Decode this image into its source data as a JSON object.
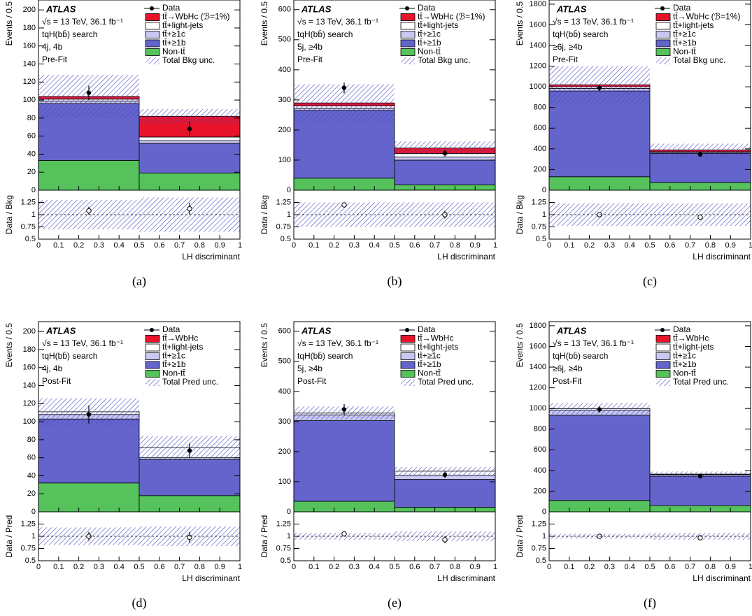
{
  "chart_data": [
    {
      "type": "histogram",
      "caption": "(a)",
      "experiment": "ATLAS",
      "energy_lumi": "√s = 13 TeV, 36.1 fb⁻¹",
      "search": "tqH(bb̄) search",
      "region": "4j, 4b",
      "stage": "Pre-Fit",
      "ylabel": "Events / 0.5",
      "xlabel": "LH discriminant",
      "ratio_label": "Data / Bkg",
      "unc_label": "Total Bkg unc.",
      "bins": [
        0,
        0.5,
        1
      ],
      "xlim": [
        0,
        1
      ],
      "xticks": [
        0,
        0.1,
        0.2,
        0.3,
        0.4,
        0.5,
        0.6,
        0.7,
        0.8,
        0.9,
        1
      ],
      "ylim": [
        0,
        211
      ],
      "yticks": [
        0,
        20,
        40,
        60,
        80,
        100,
        120,
        140,
        160,
        180,
        200
      ],
      "series": [
        {
          "name": "Non-tt̄",
          "color": "#55c25c",
          "values": [
            33,
            19
          ]
        },
        {
          "name": "tt̄+≥1b",
          "color": "#6464cc",
          "values": [
            63,
            33
          ]
        },
        {
          "name": "tt̄+≥1c",
          "color": "#c8c8f2",
          "values": [
            3,
            3
          ]
        },
        {
          "name": "tt̄+light-jets",
          "color": "#ffffff",
          "values": [
            2,
            4
          ]
        },
        {
          "name": "tt̄→WbHc (ℬ=1%)",
          "color": "#e8132b",
          "values": [
            3,
            23
          ]
        }
      ],
      "unc": [
        24,
        8
      ],
      "data": {
        "name": "Data",
        "values": [
          108,
          68
        ],
        "errors": [
          8,
          8
        ]
      },
      "ratio": {
        "values": [
          1.08,
          1.12
        ],
        "errors": [
          0.08,
          0.12
        ],
        "unc": [
          0.3,
          0.35
        ]
      },
      "ratio_ylim": [
        0.5,
        1.5
      ],
      "ratio_yticks": [
        0.5,
        0.75,
        1,
        1.25
      ],
      "ratio_ref": 1
    },
    {
      "type": "histogram",
      "caption": "(b)",
      "experiment": "ATLAS",
      "energy_lumi": "√s = 13 TeV, 36.1 fb⁻¹",
      "search": "tqH(bb̄) search",
      "region": "5j, ≥4b",
      "stage": "Pre-Fit",
      "ylabel": "Events / 0.5",
      "xlabel": "LH discriminant",
      "ratio_label": "Data / Bkg",
      "unc_label": "Total Bkg unc.",
      "bins": [
        0,
        0.5,
        1
      ],
      "xlim": [
        0,
        1
      ],
      "xticks": [
        0,
        0.1,
        0.2,
        0.3,
        0.4,
        0.5,
        0.6,
        0.7,
        0.8,
        0.9,
        1
      ],
      "ylim": [
        0,
        632
      ],
      "yticks": [
        0,
        100,
        200,
        300,
        400,
        500,
        600
      ],
      "series": [
        {
          "name": "Non-tt̄",
          "color": "#55c25c",
          "values": [
            40,
            18
          ]
        },
        {
          "name": "tt̄+≥1b",
          "color": "#6464cc",
          "values": [
            225,
            82
          ]
        },
        {
          "name": "tt̄+≥1c",
          "color": "#c8c8f2",
          "values": [
            7,
            10
          ]
        },
        {
          "name": "tt̄+light-jets",
          "color": "#ffffff",
          "values": [
            8,
            12
          ]
        },
        {
          "name": "tt̄→WbHc (ℬ=1%)",
          "color": "#e8132b",
          "values": [
            10,
            18
          ]
        }
      ],
      "unc": [
        62,
        22
      ],
      "data": {
        "name": "Data",
        "values": [
          340,
          123
        ],
        "errors": [
          18,
          11
        ]
      },
      "ratio": {
        "values": [
          1.2,
          1.0
        ],
        "errors": [
          0.05,
          0.08
        ],
        "unc": [
          0.25,
          0.25
        ]
      },
      "ratio_ylim": [
        0.5,
        1.5
      ],
      "ratio_yticks": [
        0.5,
        0.75,
        1,
        1.25
      ],
      "ratio_ref": 1
    },
    {
      "type": "histogram",
      "caption": "(c)",
      "experiment": "ATLAS",
      "energy_lumi": "√s = 13 TeV, 36.1 fb⁻¹",
      "search": "tqH(bb̄) search",
      "region": "≥6j, ≥4b",
      "stage": "Pre-Fit",
      "ylabel": "Events / 0.5",
      "xlabel": "LH discriminant",
      "ratio_label": "Data / Bkg",
      "unc_label": "Total Bkg unc.",
      "bins": [
        0,
        0.5,
        1
      ],
      "xlim": [
        0,
        1
      ],
      "xticks": [
        0,
        0.1,
        0.2,
        0.3,
        0.4,
        0.5,
        0.6,
        0.7,
        0.8,
        0.9,
        1
      ],
      "ylim": [
        0,
        1840
      ],
      "yticks": [
        0,
        200,
        400,
        600,
        800,
        1000,
        1200,
        1400,
        1600,
        1800
      ],
      "series": [
        {
          "name": "Non-tt̄",
          "color": "#55c25c",
          "values": [
            130,
            75
          ]
        },
        {
          "name": "tt̄+≥1b",
          "color": "#6464cc",
          "values": [
            830,
            280
          ]
        },
        {
          "name": "tt̄+≥1c",
          "color": "#c8c8f2",
          "values": [
            25,
            10
          ]
        },
        {
          "name": "tt̄+light-jets",
          "color": "#ffffff",
          "values": [
            15,
            7
          ]
        },
        {
          "name": "tt̄→WbHc (ℬ=1%)",
          "color": "#e8132b",
          "values": [
            20,
            18
          ]
        }
      ],
      "unc": [
        180,
        60
      ],
      "data": {
        "name": "Data",
        "values": [
          990,
          345
        ],
        "errors": [
          31,
          19
        ]
      },
      "ratio": {
        "values": [
          1.0,
          0.95
        ],
        "errors": [
          0.03,
          0.05
        ],
        "unc": [
          0.23,
          0.23
        ]
      },
      "ratio_ylim": [
        0.5,
        1.5
      ],
      "ratio_yticks": [
        0.5,
        0.75,
        1,
        1.25
      ],
      "ratio_ref": 1
    },
    {
      "type": "histogram",
      "caption": "(d)",
      "experiment": "ATLAS",
      "energy_lumi": "√s = 13 TeV, 36.1 fb⁻¹",
      "search": "tqH(bb̄) search",
      "region": "4j, 4b",
      "stage": "Post-Fit",
      "ylabel": "Events / 0.5",
      "xlabel": "LH discriminant",
      "ratio_label": "Data / Pred",
      "unc_label": "Total Pred unc.",
      "bins": [
        0,
        0.5,
        1
      ],
      "xlim": [
        0,
        1
      ],
      "xticks": [
        0,
        0.1,
        0.2,
        0.3,
        0.4,
        0.5,
        0.6,
        0.7,
        0.8,
        0.9,
        1
      ],
      "ylim": [
        0,
        211
      ],
      "yticks": [
        0,
        20,
        40,
        60,
        80,
        100,
        120,
        140,
        160,
        180,
        200
      ],
      "series": [
        {
          "name": "Non-tt̄",
          "color": "#55c25c",
          "values": [
            32,
            18
          ]
        },
        {
          "name": "tt̄+≥1b",
          "color": "#6464cc",
          "values": [
            71,
            40
          ]
        },
        {
          "name": "tt̄+≥1c",
          "color": "#c8c8f2",
          "values": [
            5,
            2
          ]
        },
        {
          "name": "tt̄+light-jets",
          "color": "#ffffff",
          "values": [
            3,
            11
          ]
        },
        {
          "name": "tt̄→WbHc",
          "color": "#e8132b",
          "values": [
            0,
            0
          ]
        }
      ],
      "unc": [
        15,
        13
      ],
      "data": {
        "name": "Data",
        "values": [
          108,
          68
        ],
        "errors": [
          10,
          8
        ]
      },
      "ratio": {
        "values": [
          1.0,
          0.98
        ],
        "errors": [
          0.09,
          0.11
        ],
        "unc": [
          0.18,
          0.2
        ]
      },
      "ratio_ylim": [
        0.5,
        1.5
      ],
      "ratio_yticks": [
        0.5,
        0.75,
        1,
        1.25
      ],
      "ratio_ref": 1
    },
    {
      "type": "histogram",
      "caption": "(e)",
      "experiment": "ATLAS",
      "energy_lumi": "√s = 13 TeV, 36.1 fb⁻¹",
      "search": "tqH(bb̄) search",
      "region": "5j, ≥4b",
      "stage": "Post-Fit",
      "ylabel": "Events / 0.5",
      "xlabel": "LH discriminant",
      "ratio_label": "Data / Pred",
      "unc_label": "Total Pred unc.",
      "bins": [
        0,
        0.5,
        1
      ],
      "xlim": [
        0,
        1
      ],
      "xticks": [
        0,
        0.1,
        0.2,
        0.3,
        0.4,
        0.5,
        0.6,
        0.7,
        0.8,
        0.9,
        1
      ],
      "ylim": [
        0,
        632
      ],
      "yticks": [
        0,
        100,
        200,
        300,
        400,
        500,
        600
      ],
      "series": [
        {
          "name": "Non-tt̄",
          "color": "#55c25c",
          "values": [
            35,
            15
          ]
        },
        {
          "name": "tt̄+≥1b",
          "color": "#6464cc",
          "values": [
            268,
            93
          ]
        },
        {
          "name": "tt̄+≥1c",
          "color": "#c8c8f2",
          "values": [
            19,
            14
          ]
        },
        {
          "name": "tt̄+light-jets",
          "color": "#ffffff",
          "values": [
            6,
            13
          ]
        },
        {
          "name": "tt̄→WbHc",
          "color": "#e8132b",
          "values": [
            0,
            0
          ]
        }
      ],
      "unc": [
        22,
        14
      ],
      "data": {
        "name": "Data",
        "values": [
          340,
          123
        ],
        "errors": [
          18,
          11
        ]
      },
      "ratio": {
        "values": [
          1.05,
          0.93
        ],
        "errors": [
          0.04,
          0.07
        ],
        "unc": [
          0.07,
          0.1
        ]
      },
      "ratio_ylim": [
        0.5,
        1.5
      ],
      "ratio_yticks": [
        0.5,
        0.75,
        1,
        1.25
      ],
      "ratio_ref": 1
    },
    {
      "type": "histogram",
      "caption": "(f)",
      "experiment": "ATLAS",
      "energy_lumi": "√s = 13 TeV, 36.1 fb⁻¹",
      "search": "tqH(bb̄) search",
      "region": "≥6j, ≥4b",
      "stage": "Post-Fit",
      "ylabel": "Events / 0.5",
      "xlabel": "LH discriminant",
      "ratio_label": "Data / Pred",
      "unc_label": "Total Pred unc.",
      "bins": [
        0,
        0.5,
        1
      ],
      "xlim": [
        0,
        1
      ],
      "xticks": [
        0,
        0.1,
        0.2,
        0.3,
        0.4,
        0.5,
        0.6,
        0.7,
        0.8,
        0.9,
        1
      ],
      "ylim": [
        0,
        1840
      ],
      "yticks": [
        0,
        200,
        400,
        600,
        800,
        1000,
        1200,
        1400,
        1600,
        1800
      ],
      "series": [
        {
          "name": "Non-tt̄",
          "color": "#55c25c",
          "values": [
            110,
            60
          ]
        },
        {
          "name": "tt̄+≥1b",
          "color": "#6464cc",
          "values": [
            825,
            285
          ]
        },
        {
          "name": "tt̄+≥1c",
          "color": "#c8c8f2",
          "values": [
            50,
            15
          ]
        },
        {
          "name": "tt̄+light-jets",
          "color": "#ffffff",
          "values": [
            13,
            5
          ]
        },
        {
          "name": "tt̄→WbHc",
          "color": "#e8132b",
          "values": [
            0,
            0
          ]
        }
      ],
      "unc": [
        55,
        25
      ],
      "data": {
        "name": "Data",
        "values": [
          990,
          345
        ],
        "errors": [
          31,
          19
        ]
      },
      "ratio": {
        "values": [
          1.0,
          0.97
        ],
        "errors": [
          0.02,
          0.04
        ],
        "unc": [
          0.05,
          0.07
        ]
      },
      "ratio_ylim": [
        0.5,
        1.5
      ],
      "ratio_yticks": [
        0.5,
        0.75,
        1,
        1.25
      ],
      "ratio_ref": 1
    }
  ]
}
